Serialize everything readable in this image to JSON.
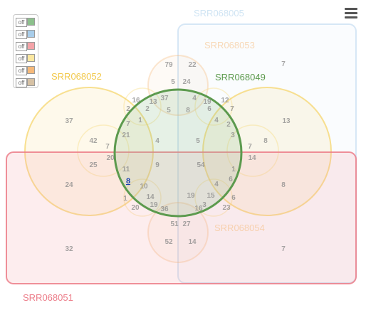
{
  "legend": [
    {
      "state": "off",
      "color": "#8cc08c"
    },
    {
      "state": "off",
      "color": "#a8cdea"
    },
    {
      "state": "off",
      "color": "#f4a3a8"
    },
    {
      "state": "off",
      "color": "#fbe7a0"
    },
    {
      "state": "off",
      "color": "#f6b97a"
    },
    {
      "state": "off",
      "color": "#d6c1a4"
    }
  ],
  "sets": [
    {
      "key": "green",
      "label": "SRR068049",
      "color": "#5c9a4e"
    },
    {
      "key": "blue",
      "label": "SRR068005",
      "color": "#a8cdea"
    },
    {
      "key": "pink",
      "label": "SRR068051",
      "color": "#ec7c88"
    },
    {
      "key": "yellow",
      "label": "SRR068052",
      "color": "#f6d66e"
    },
    {
      "key": "orange",
      "label": "SRR068053",
      "color": "#f6b97a"
    },
    {
      "key": "tan",
      "label": "SRR068054",
      "color": "#f6b97a"
    }
  ],
  "counts": [
    "79",
    "22",
    "5",
    "24",
    "37",
    "5",
    "8",
    "16",
    "13",
    "4",
    "19",
    "12",
    "2",
    "2",
    "1",
    "6",
    "7",
    "4",
    "2",
    "7",
    "3",
    "37",
    "13",
    "21",
    "42",
    "7",
    "8",
    "25",
    "20",
    "4",
    "5",
    "7",
    "14",
    "24",
    "9",
    "54",
    "1",
    "8",
    "11",
    "10",
    "4",
    "6",
    "1",
    "14",
    "19",
    "15",
    "6",
    "20",
    "19",
    "36",
    "3",
    "16",
    "23",
    "51",
    "27",
    "52",
    "14",
    "32",
    "7",
    "7"
  ],
  "highlight_count": "8"
}
